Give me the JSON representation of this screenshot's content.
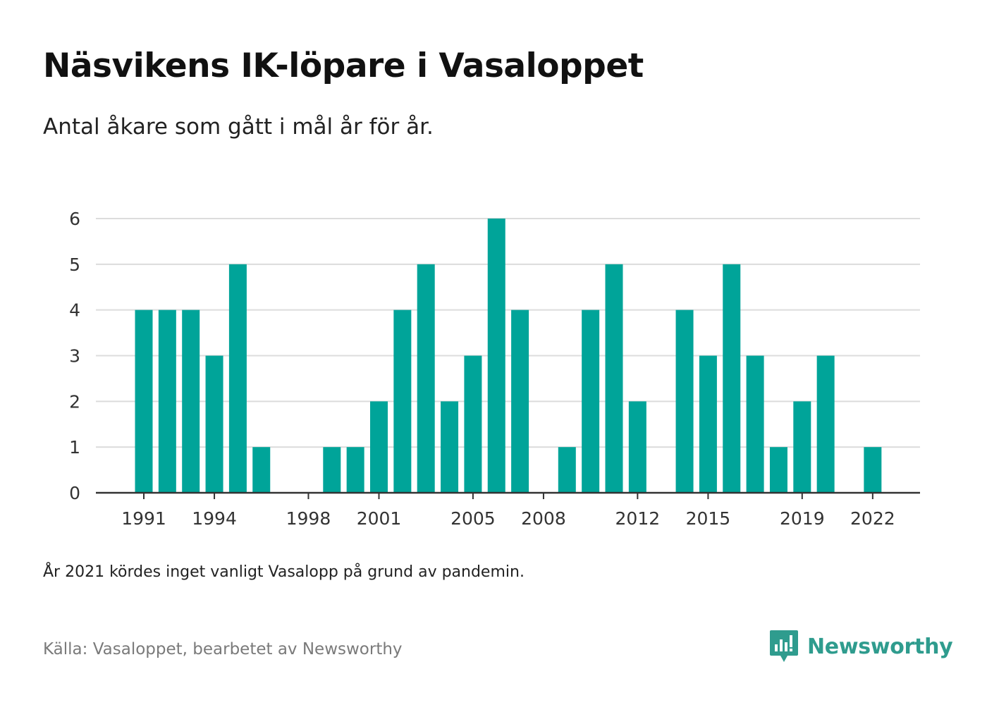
{
  "title": "Näsvikens IK-löpare i Vasaloppet",
  "subtitle": "Antal åkare som gått i mål år för år.",
  "footnote": "År 2021 kördes inget vanligt Vasalopp på grund av pandemin.",
  "source": "Källa: Vasaloppet, bearbetet av Newsworthy",
  "brand": {
    "name": "Newsworthy",
    "icon": "newsworthy-logo-icon",
    "color": "#2f9c8e"
  },
  "colors": {
    "bar": "#00a499",
    "grid": "#dcdcdc",
    "axis": "#333333"
  },
  "chart_data": {
    "type": "bar",
    "title": "Näsvikens IK-löpare i Vasaloppet",
    "subtitle": "Antal åkare som gått i mål år för år.",
    "xlabel": "",
    "ylabel": "",
    "ylim": [
      0,
      6
    ],
    "yticks": [
      0,
      1,
      2,
      3,
      4,
      5,
      6
    ],
    "xticks": [
      "1991",
      "1994",
      "1998",
      "2001",
      "2005",
      "2008",
      "2012",
      "2015",
      "2019",
      "2022"
    ],
    "grid": true,
    "legend": "none",
    "categories": [
      "1991",
      "1992",
      "1993",
      "1994",
      "1995",
      "1996",
      "1997",
      "1998",
      "1999",
      "2000",
      "2001",
      "2002",
      "2003",
      "2004",
      "2005",
      "2006",
      "2007",
      "2008",
      "2009",
      "2010",
      "2011",
      "2012",
      "2013",
      "2014",
      "2015",
      "2016",
      "2017",
      "2018",
      "2019",
      "2020",
      "2021",
      "2022"
    ],
    "values": [
      4,
      4,
      4,
      3,
      5,
      1,
      0,
      0,
      1,
      1,
      2,
      4,
      5,
      2,
      3,
      6,
      4,
      0,
      1,
      4,
      5,
      2,
      0,
      4,
      3,
      5,
      3,
      1,
      2,
      3,
      0,
      1
    ]
  }
}
